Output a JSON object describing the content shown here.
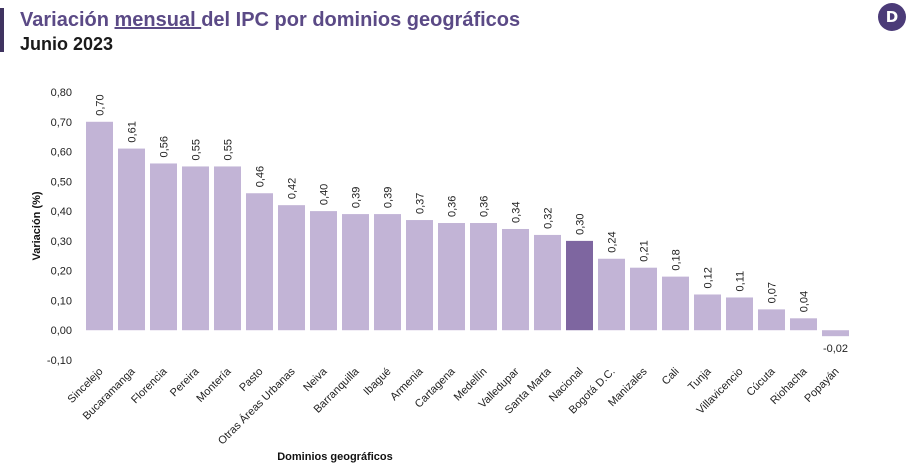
{
  "header": {
    "title_pre": "Variación ",
    "title_mid": "mensual ",
    "title_post": "del IPC por dominios geográficos",
    "subtitle": "Junio 2023",
    "logo_letter": "D"
  },
  "colors": {
    "bar": "#c2b4d6",
    "highlight": "#7e66a0",
    "title": "#5b4a86",
    "logo": "#4b3b78"
  },
  "chart_data": {
    "type": "bar",
    "title": "Variación mensual del IPC por dominios geográficos",
    "subtitle": "Junio 2023",
    "xlabel": "Dominios geográficos",
    "ylabel": "Variación (%)",
    "ylim": [
      -0.1,
      0.8
    ],
    "yticks": [
      "-0,10",
      "0,00",
      "0,10",
      "0,20",
      "0,30",
      "0,40",
      "0,50",
      "0,60",
      "0,70",
      "0,80"
    ],
    "grid": false,
    "highlight_category": "Nacional",
    "categories": [
      "Sincelejo",
      "Bucaramanga",
      "Florencia",
      "Pereira",
      "Montería",
      "Pasto",
      "Otras Áreas Urbanas",
      "Neiva",
      "Barranquilla",
      "Ibagué",
      "Armenia",
      "Cartagena",
      "Medellín",
      "Valledupar",
      "Santa Marta",
      "Nacional",
      "Bogotá D.C.",
      "Manizales",
      "Cali",
      "Tunja",
      "Villavicencio",
      "Cúcuta",
      "Riohacha",
      "Popayán"
    ],
    "values": [
      0.7,
      0.61,
      0.56,
      0.55,
      0.55,
      0.46,
      0.42,
      0.4,
      0.39,
      0.39,
      0.37,
      0.36,
      0.36,
      0.34,
      0.32,
      0.3,
      0.24,
      0.21,
      0.18,
      0.12,
      0.11,
      0.07,
      0.04,
      -0.02
    ],
    "value_labels": [
      "0,70",
      "0,61",
      "0,56",
      "0,55",
      "0,55",
      "0,46",
      "0,42",
      "0,40",
      "0,39",
      "0,39",
      "0,37",
      "0,36",
      "0,36",
      "0,34",
      "0,32",
      "0,30",
      "0,24",
      "0,21",
      "0,18",
      "0,12",
      "0,11",
      "0,07",
      "0,04",
      "-0,02"
    ]
  }
}
